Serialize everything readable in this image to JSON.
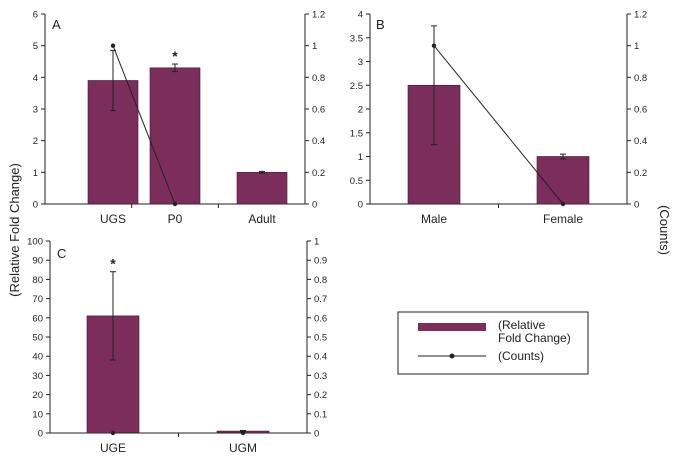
{
  "axis_labels": {
    "left": "(Relative Fold Change)",
    "right": "(Counts)"
  },
  "legend": {
    "bar_label_line1": "(Relative",
    "bar_label_line2": "Fold Change)",
    "line_label": "(Counts)"
  },
  "colors": {
    "bar_fill": "#7b2d5c",
    "line": "#222222",
    "axis": "#222222"
  },
  "chart_data": [
    {
      "panel": "A",
      "type": "bar",
      "categories": [
        "UGS",
        "P0",
        "Adult"
      ],
      "series": [
        {
          "name": "(Relative Fold Change)",
          "axis": "left",
          "values": [
            3.9,
            4.3,
            1.0
          ],
          "errors": [
            0.95,
            0.12,
            0.03
          ]
        },
        {
          "name": "(Counts)",
          "axis": "right",
          "kind": "line",
          "values": [
            1.0,
            0.0,
            null
          ]
        }
      ],
      "significance": [
        "",
        "*",
        ""
      ],
      "ylim_left": [
        0,
        6
      ],
      "yticks_left": [
        "0",
        "1",
        "2",
        "3",
        "4",
        "5",
        "6"
      ],
      "ylim_right": [
        0,
        1.2
      ],
      "yticks_right": [
        "0",
        "0.2",
        "0.4",
        "0.6",
        "0.8",
        "1",
        "1.2"
      ]
    },
    {
      "panel": "B",
      "type": "bar",
      "categories": [
        "Male",
        "Female"
      ],
      "series": [
        {
          "name": "(Relative Fold Change)",
          "axis": "left",
          "values": [
            2.5,
            1.0
          ],
          "errors": [
            1.25,
            0.05
          ]
        },
        {
          "name": "(Counts)",
          "axis": "right",
          "kind": "line",
          "values": [
            1.0,
            0.0
          ]
        }
      ],
      "significance": [
        "",
        ""
      ],
      "ylim_left": [
        0,
        4
      ],
      "yticks_left": [
        "0",
        "0.5",
        "1",
        "1.5",
        "2",
        "2.5",
        "3",
        "3.5",
        "4"
      ],
      "ylim_right": [
        0,
        1.2
      ],
      "yticks_right": [
        "0",
        "0.2",
        "0.4",
        "0.6",
        "0.8",
        "1",
        "1.2"
      ]
    },
    {
      "panel": "C",
      "type": "bar",
      "categories": [
        "UGE",
        "UGM"
      ],
      "series": [
        {
          "name": "(Relative Fold Change)",
          "axis": "left",
          "values": [
            61,
            1.0
          ],
          "errors": [
            23,
            0.3
          ]
        },
        {
          "name": "(Counts)",
          "axis": "right",
          "kind": "line",
          "values": [
            0.0,
            0.0
          ]
        }
      ],
      "significance": [
        "*",
        ""
      ],
      "ylim_left": [
        0,
        100
      ],
      "yticks_left": [
        "0",
        "10",
        "20",
        "30",
        "40",
        "50",
        "60",
        "70",
        "80",
        "90",
        "100"
      ],
      "ylim_right": [
        0,
        1
      ],
      "yticks_right": [
        "0",
        "0.1",
        "0.2",
        "0.3",
        "0.4",
        "0.5",
        "0.6",
        "0.7",
        "0.8",
        "0.9",
        "1"
      ]
    }
  ]
}
